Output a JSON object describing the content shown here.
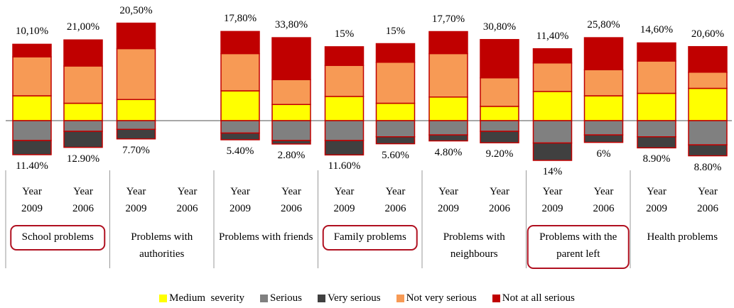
{
  "chart_data": {
    "type": "diverging_stacked_bar",
    "groups": [
      "School problems",
      "Problems with authorities",
      "Problems with friends",
      "Family problems",
      "Problems with neighbours",
      "Problems with the parent left",
      "Health problems"
    ],
    "categories": [
      "Year 2009",
      "Year 2006",
      "Year 2009",
      "Year 2006",
      "Year 2009",
      "Year 2006",
      "Year 2009",
      "Year 2006",
      "Year 2009",
      "Year 2006",
      "Year 2009",
      "Year 2006",
      "Year 2009",
      "Year 2006"
    ],
    "series": [
      {
        "name": "Medium  severity",
        "color": "#ffff00",
        "direction": "up",
        "values": [
          20,
          14,
          17,
          null,
          24,
          13,
          19.5,
          14,
          19,
          11.5,
          23.5,
          20,
          22,
          26
        ]
      },
      {
        "name": "Serious",
        "color": "#808080",
        "direction": "down",
        "values": [
          16,
          8.6,
          7,
          null,
          10,
          16,
          16,
          13,
          11.5,
          8.6,
          18,
          11.5,
          13,
          19.5
        ]
      },
      {
        "name": "Very serious",
        "color": "#404040",
        "direction": "down",
        "values": [
          11.4,
          12.9,
          7.7,
          null,
          5.4,
          2.8,
          11.6,
          5.6,
          4.8,
          9.2,
          14,
          6,
          8.9,
          8.8
        ],
        "value_labels": [
          "11.40%",
          "12.90%",
          "7.70%",
          null,
          "5.40%",
          "2.80%",
          "11.60%",
          "5.60%",
          "4.80%",
          "9.20%",
          "14%",
          "6%",
          "8.90%",
          "8.80%"
        ]
      },
      {
        "name": "Not very serious",
        "color": "#f79a55",
        "direction": "up",
        "values": [
          31.4,
          30,
          41,
          null,
          30,
          20,
          25,
          33,
          35,
          23,
          23,
          21,
          26,
          13
        ]
      },
      {
        "name": "Not at all serious",
        "color": "#c00000",
        "direction": "up",
        "values": [
          10.1,
          21,
          20.5,
          null,
          17.8,
          33.8,
          15,
          15,
          17.7,
          30.8,
          11.4,
          25.8,
          14.6,
          20.6
        ],
        "value_labels": [
          "10,10%",
          "21,00%",
          "20,50%",
          null,
          "17,80%",
          "33,80%",
          "15%",
          "15%",
          "17,70%",
          "30,80%",
          "11,40%",
          "25,80%",
          "14,60%",
          "20,60%"
        ]
      }
    ],
    "legend": "bottom"
  }
}
